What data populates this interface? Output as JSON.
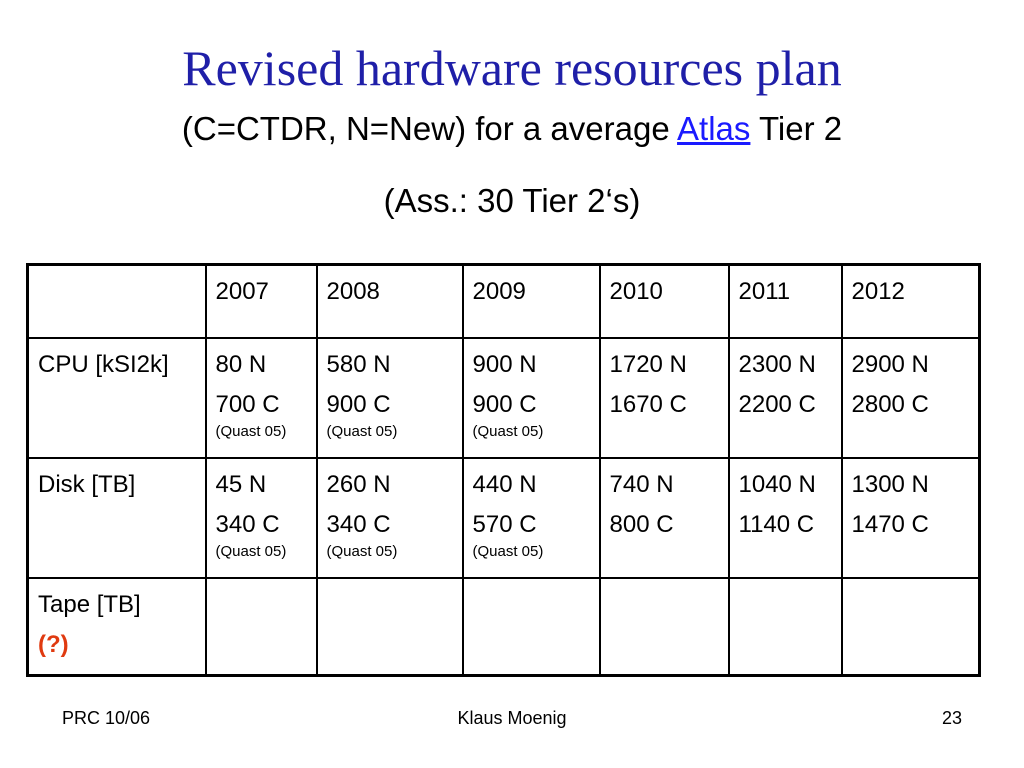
{
  "slide": {
    "title": "Revised hardware resources plan",
    "subtitle_prefix": "(C=CTDR, N=New)  for a average ",
    "subtitle_link": "Atlas",
    "subtitle_suffix": " Tier 2",
    "assumption": "(Ass.: 30 Tier 2‘s)"
  },
  "table": {
    "header": [
      "",
      "2007",
      "2008",
      "2009",
      "2010",
      "2011",
      "2012"
    ],
    "rows": [
      {
        "label": "CPU [kSI2k]",
        "cells": [
          {
            "n": "80 N",
            "c": "700 C",
            "note": "(Quast 05)"
          },
          {
            "n": "580 N",
            "c": "900 C",
            "note": "(Quast 05)"
          },
          {
            "n": "900 N",
            "c": "900 C",
            "note": "(Quast 05)"
          },
          {
            "n": "1720 N",
            "c": "1670 C",
            "note": ""
          },
          {
            "n": "2300 N",
            "c": "2200 C",
            "note": ""
          },
          {
            "n": "2900 N",
            "c": "2800 C",
            "note": ""
          }
        ]
      },
      {
        "label": "Disk [TB]",
        "cells": [
          {
            "n": "45 N",
            "c": "340 C",
            "note": "(Quast 05)"
          },
          {
            "n": "260 N",
            "c": "340 C",
            "note": "(Quast 05)"
          },
          {
            "n": "440 N",
            "c": "570 C",
            "note": "(Quast 05)"
          },
          {
            "n": "740 N",
            "c": "800 C",
            "note": ""
          },
          {
            "n": "1040 N",
            "c": "1140 C",
            "note": ""
          },
          {
            "n": "1300 N",
            "c": "1470 C",
            "note": ""
          }
        ]
      },
      {
        "label": "Tape [TB]",
        "label_note": "(?)",
        "cells": []
      }
    ]
  },
  "footer": {
    "left": "PRC 10/06",
    "center": "Klaus Moenig",
    "right": "23"
  },
  "colors": {
    "title": "#1f1fa8",
    "link": "#1a1aff",
    "question": "#e03a10"
  }
}
